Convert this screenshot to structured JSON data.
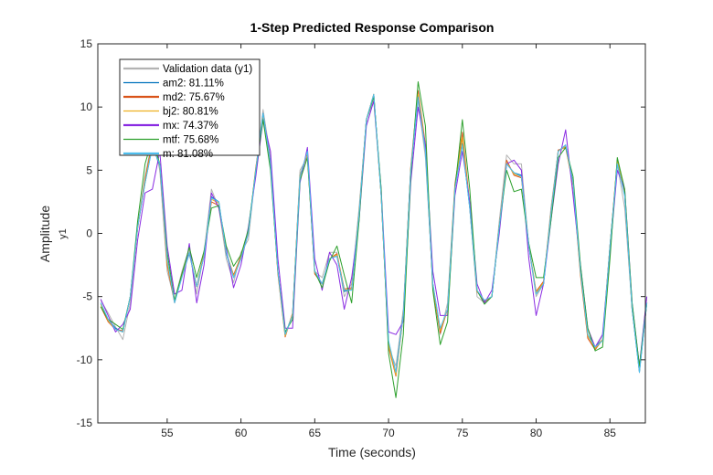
{
  "chart_data": {
    "type": "line",
    "title": "1-Step Predicted Response Comparison",
    "xlabel": "Time (seconds)",
    "ylabel": "Amplitude",
    "output_label": "y1",
    "xlim": [
      50.3,
      87.4
    ],
    "ylim": [
      -15,
      15
    ],
    "xticks": [
      55,
      60,
      65,
      70,
      75,
      80,
      85
    ],
    "yticks": [
      -15,
      -10,
      -5,
      0,
      5,
      10,
      15
    ],
    "grid": false,
    "legend_position": "top-left",
    "x": [
      50.5,
      51,
      51.5,
      52,
      52.5,
      53,
      53.5,
      54,
      54.5,
      55,
      55.5,
      56,
      56.5,
      57,
      57.5,
      58,
      58.5,
      59,
      59.5,
      60,
      60.5,
      61,
      61.5,
      62,
      62.5,
      63,
      63.5,
      64,
      64.5,
      65,
      65.5,
      66,
      66.5,
      67,
      67.5,
      68,
      68.5,
      69,
      69.5,
      70,
      70.5,
      71,
      71.5,
      72,
      72.5,
      73,
      73.5,
      74,
      74.5,
      75,
      75.5,
      76,
      76.5,
      77,
      77.5,
      78,
      78.5,
      79,
      79.5,
      80,
      80.5,
      81,
      81.5,
      82,
      82.5,
      83,
      83.5,
      84,
      84.5,
      85,
      85.5,
      86,
      86.5,
      87,
      87.5
    ],
    "series": [
      {
        "name": "Validation data (y1)",
        "color": "#b3b3b3",
        "values": [
          -5.3,
          -6.3,
          -7.4,
          -8.4,
          -5.5,
          0.5,
          4.5,
          7.5,
          5,
          -3,
          -5.3,
          -3,
          -1.2,
          -4.8,
          -1.5,
          3.5,
          2,
          -2,
          -3.9,
          -1.5,
          -0.5,
          5,
          9.8,
          6,
          -3,
          -8,
          -6.5,
          5,
          6,
          -3,
          -3.5,
          -1.5,
          -1.5,
          -5,
          -4,
          2,
          9,
          10.5,
          3,
          -9,
          -10.5,
          -6,
          5,
          10.5,
          6,
          -4,
          -8,
          -5.5,
          4,
          7.5,
          2,
          -5,
          -5.5,
          -5,
          1,
          6.2,
          5.5,
          5.5,
          -1,
          -5,
          -4,
          2,
          6.5,
          7,
          4,
          -3,
          -8,
          -9.2,
          -8,
          -1,
          5.5,
          2,
          -6,
          -10.5,
          -5
        ]
      },
      {
        "name": "am2: 81.11%",
        "color": "#0072bd",
        "values": [
          -5.5,
          -6.8,
          -7.5,
          -7.8,
          -5,
          0.5,
          4,
          6.9,
          5.4,
          -2.2,
          -5.4,
          -3.4,
          -1.6,
          -4.2,
          -1.8,
          2.9,
          2.5,
          -1.6,
          -3.5,
          -2,
          0,
          5,
          9.5,
          5.6,
          -3,
          -8,
          -6.4,
          4.6,
          6.4,
          -3,
          -4,
          -2,
          -1.8,
          -4.6,
          -4.4,
          1.6,
          9,
          11,
          3,
          -8.6,
          -11,
          -6.4,
          5,
          10.8,
          6.6,
          -4,
          -7.6,
          -6,
          3.6,
          7.1,
          2,
          -4.6,
          -5.3,
          -5,
          0.5,
          5.5,
          4.8,
          4.6,
          -1,
          -4.8,
          -4,
          1.6,
          6.5,
          7,
          4,
          -3,
          -8,
          -9,
          -8.4,
          -1,
          5.6,
          3,
          -6,
          -11,
          -5.5
        ]
      },
      {
        "name": "md2: 75.67%",
        "color": "#d95319",
        "values": [
          -5.8,
          -7,
          -7.6,
          -7.7,
          -5,
          0.4,
          4.3,
          7.2,
          5.5,
          -2.5,
          -5.5,
          -3.2,
          -1.5,
          -4.2,
          -1.6,
          2.5,
          2.2,
          -1.5,
          -3.3,
          -1.8,
          0,
          5.2,
          9.2,
          5.4,
          -3.2,
          -8.2,
          -6.3,
          4.5,
          6.3,
          -3.2,
          -4,
          -2,
          -1.6,
          -4.4,
          -4.3,
          1.5,
          9,
          11,
          3,
          -9,
          -11.3,
          -6.5,
          5.2,
          11.3,
          7,
          -4.3,
          -7.9,
          -6,
          3.8,
          8,
          2.3,
          -4.6,
          -5.4,
          -5,
          0.5,
          5.8,
          4.6,
          4.4,
          -1,
          -4.6,
          -3.8,
          1.6,
          6.6,
          6.8,
          3.8,
          -3.3,
          -8.3,
          -9.2,
          -8.4,
          -1,
          5.8,
          3.2,
          -6,
          -10.8,
          -5.5
        ]
      },
      {
        "name": "bj2: 80.81%",
        "color": "#edb120",
        "values": [
          -5.6,
          -6.9,
          -7.6,
          -7.8,
          -5,
          0.5,
          4.1,
          7,
          5.5,
          -2.3,
          -5.4,
          -3.3,
          -1.5,
          -4.2,
          -1.7,
          2.7,
          2.4,
          -1.5,
          -3.4,
          -1.9,
          0,
          5.1,
          9.4,
          5.5,
          -3.1,
          -8.1,
          -6.4,
          4.6,
          6.4,
          -3.1,
          -4,
          -2,
          -1.7,
          -4.5,
          -4.4,
          1.6,
          9,
          11,
          3,
          -8.8,
          -11.2,
          -6.5,
          5.1,
          11,
          6.8,
          -4.1,
          -7.7,
          -6,
          3.7,
          7.6,
          2.1,
          -4.6,
          -5.3,
          -5,
          0.5,
          5.6,
          4.7,
          4.5,
          -1,
          -4.7,
          -3.9,
          1.6,
          6.5,
          6.9,
          3.9,
          -3.1,
          -8.1,
          -9.1,
          -8.4,
          -1,
          5.7,
          3.1,
          -6,
          -10.9,
          -5.5
        ]
      },
      {
        "name": "mx: 74.37%",
        "color": "#8a2be2",
        "values": [
          -5.2,
          -6.5,
          -7.8,
          -7.2,
          -6,
          -0.5,
          3.2,
          3.5,
          6.5,
          -1,
          -4.8,
          -4.5,
          -0.8,
          -5.5,
          -2.5,
          3.2,
          2,
          -1.2,
          -4.3,
          -2.5,
          0.5,
          4.5,
          9,
          6.5,
          -2,
          -7.5,
          -7.5,
          4,
          6.8,
          -2,
          -4.5,
          -1.5,
          -2.5,
          -6,
          -3.5,
          1,
          8.5,
          10.5,
          3.5,
          -7.8,
          -8,
          -7,
          4,
          10,
          7,
          -3,
          -6.5,
          -6.5,
          3,
          6.5,
          2.5,
          -4,
          -5.5,
          -4.5,
          0,
          5.5,
          5.8,
          5,
          -2,
          -6.5,
          -4,
          1,
          5.5,
          8.2,
          3,
          -2.5,
          -7.5,
          -9,
          -8,
          -1.5,
          5,
          3.5,
          -5.5,
          -10.5,
          -5
        ]
      },
      {
        "name": "mtf: 75.68%",
        "color": "#2ca02c",
        "values": [
          -5.8,
          -6.8,
          -7.2,
          -7.6,
          -5,
          1,
          5.5,
          7.5,
          5.5,
          -1.5,
          -5.3,
          -3.2,
          -1.1,
          -3.5,
          -1.4,
          2,
          2.2,
          -1,
          -2.6,
          -1.7,
          0.3,
          5,
          9,
          5,
          -3,
          -7.8,
          -6.8,
          4.2,
          6,
          -3,
          -4.3,
          -2.2,
          -1,
          -3.3,
          -5.5,
          1,
          9,
          10.8,
          3.5,
          -9.5,
          -13,
          -8,
          4.5,
          12,
          8.5,
          -4.5,
          -8.8,
          -7,
          3.5,
          9,
          3.5,
          -4.5,
          -5.6,
          -5,
          0.5,
          5,
          3.3,
          3.5,
          -0.8,
          -3.5,
          -3.5,
          1,
          6,
          6.8,
          4.5,
          -2.5,
          -7.5,
          -9.3,
          -9,
          -2,
          6,
          3.5,
          -5.5,
          -10.5,
          -5.5
        ]
      },
      {
        "name": "m: 81.08%",
        "color": "#4dbeee",
        "values": [
          -5.5,
          -6.8,
          -7.6,
          -7.8,
          -5,
          0.5,
          4,
          6.8,
          5.5,
          -2,
          -5.5,
          -3.5,
          -1.5,
          -4.2,
          -1.8,
          2.8,
          2.5,
          -1.5,
          -3.5,
          -2,
          0,
          5,
          9.5,
          5.5,
          -3,
          -8,
          -6.5,
          4.5,
          6.5,
          -3,
          -4,
          -2,
          -1.8,
          -4.5,
          -4.5,
          1.5,
          9,
          11,
          3,
          -8.5,
          -11,
          -6.5,
          5,
          10.8,
          6.5,
          -4,
          -7.5,
          -6,
          3.5,
          7,
          2,
          -4.5,
          -5.3,
          -5,
          0.5,
          5.5,
          4.8,
          4.5,
          -1,
          -4.8,
          -4,
          1.5,
          6.5,
          7,
          4,
          -3,
          -8,
          -9,
          -8.5,
          -1,
          5.5,
          3,
          -6,
          -11,
          -5.5
        ]
      }
    ]
  }
}
